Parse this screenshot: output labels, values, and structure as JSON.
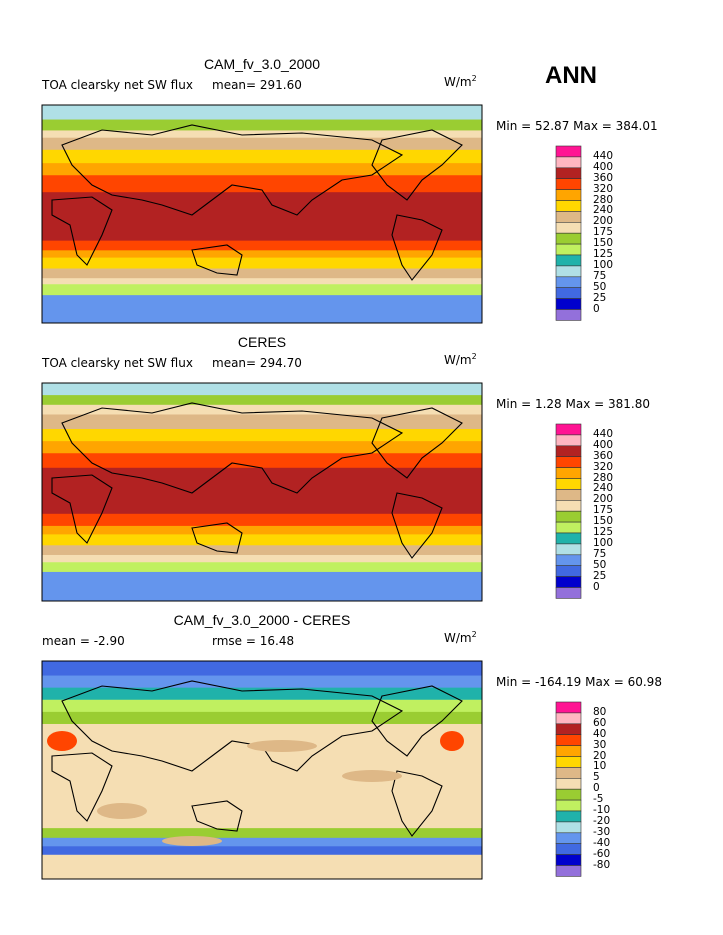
{
  "season": "ANN",
  "units": "W/m",
  "units_sup": "2",
  "colors": {
    "levels_palette": [
      "#9370DB",
      "#0000CD",
      "#4169E1",
      "#6495ED",
      "#B0E0E6",
      "#20B2AA",
      "#C0F060",
      "#9ACD32",
      "#F5DEB3",
      "#DEB887",
      "#FFD700",
      "#FFA500",
      "#FF4500",
      "#B22222",
      "#FFB6C1",
      "#FF1493"
    ],
    "coastline": "#000000"
  },
  "panels": [
    {
      "title": "CAM_fv_3.0_2000",
      "left_label": "TOA clearsky net SW flux",
      "stat_label": "mean= 291.60",
      "minmax": "Min =  52.87 Max = 384.01",
      "colorbar_labels": [
        "0",
        "25",
        "50",
        "75",
        "100",
        "125",
        "150",
        "175",
        "200",
        "240",
        "280",
        "320",
        "360",
        "400",
        "440"
      ],
      "zonal_bands_lat_color_index": [
        [
          90,
          78,
          4
        ],
        [
          78,
          69,
          7
        ],
        [
          69,
          63,
          8
        ],
        [
          63,
          53,
          9
        ],
        [
          53,
          42,
          10
        ],
        [
          42,
          32,
          11
        ],
        [
          32,
          18,
          12
        ],
        [
          18,
          -22,
          13
        ],
        [
          -22,
          -30,
          12
        ],
        [
          -30,
          -36,
          11
        ],
        [
          -36,
          -45,
          10
        ],
        [
          -45,
          -53,
          9
        ],
        [
          -53,
          -58,
          8
        ],
        [
          -58,
          -67,
          6
        ],
        [
          -67,
          -90,
          3
        ]
      ]
    },
    {
      "title": "CERES",
      "left_label": "TOA clearsky net SW flux",
      "stat_label": "mean= 294.70",
      "minmax": "Min =   1.28 Max = 381.80",
      "colorbar_labels": [
        "0",
        "25",
        "50",
        "75",
        "100",
        "125",
        "150",
        "175",
        "200",
        "240",
        "280",
        "320",
        "360",
        "400",
        "440"
      ],
      "zonal_bands_lat_color_index": [
        [
          90,
          80,
          4
        ],
        [
          80,
          72,
          7
        ],
        [
          72,
          64,
          8
        ],
        [
          64,
          52,
          9
        ],
        [
          52,
          42,
          10
        ],
        [
          42,
          32,
          11
        ],
        [
          32,
          20,
          12
        ],
        [
          20,
          -18,
          13
        ],
        [
          -18,
          -28,
          12
        ],
        [
          -28,
          -35,
          11
        ],
        [
          -35,
          -44,
          10
        ],
        [
          -44,
          -52,
          9
        ],
        [
          -52,
          -58,
          8
        ],
        [
          -58,
          -66,
          6
        ],
        [
          -66,
          -90,
          3
        ]
      ]
    },
    {
      "title": "CAM_fv_3.0_2000 - CERES",
      "left_label": "mean =   -2.90",
      "stat_label": "rmse =  16.48",
      "minmax": "Min = -164.19 Max =  60.98",
      "colorbar_labels": [
        "-80",
        "-60",
        "-40",
        "-30",
        "-20",
        "-10",
        "-5",
        "0",
        "5",
        "10",
        "20",
        "30",
        "40",
        "60",
        "80"
      ],
      "zonal_bands_lat_color_index": [
        [
          90,
          78,
          2
        ],
        [
          78,
          68,
          3
        ],
        [
          68,
          58,
          5
        ],
        [
          58,
          48,
          6
        ],
        [
          48,
          38,
          7
        ],
        [
          38,
          -48,
          8
        ],
        [
          -48,
          -56,
          7
        ],
        [
          -56,
          -63,
          3
        ],
        [
          -63,
          -70,
          2
        ],
        [
          -70,
          -90,
          8
        ]
      ]
    }
  ]
}
